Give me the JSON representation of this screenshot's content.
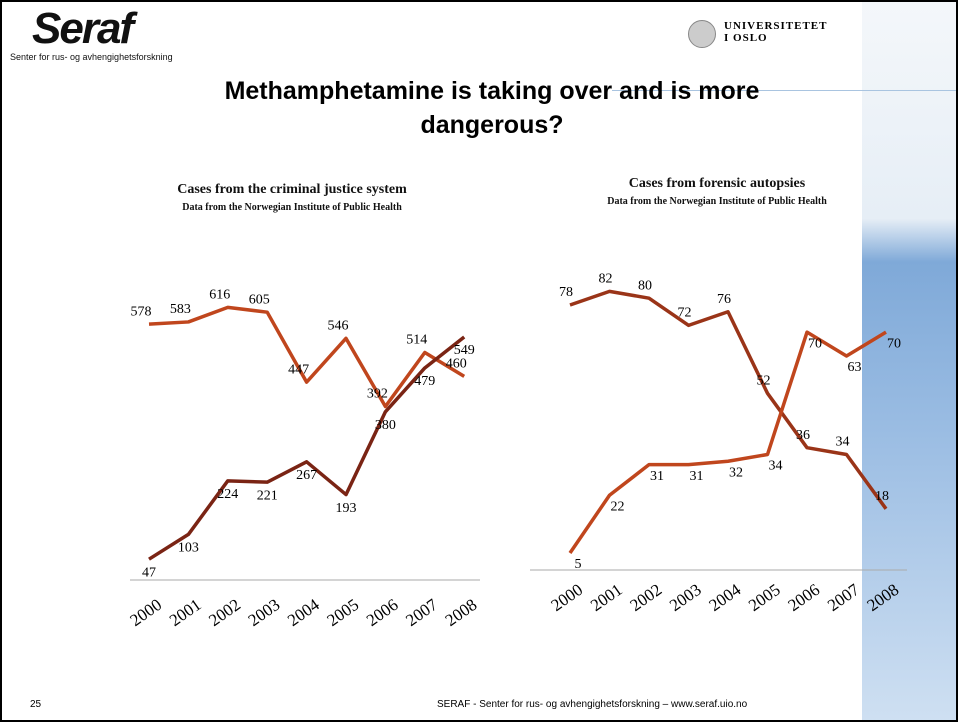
{
  "slide": {
    "logo": "Seraf",
    "logo_subtitle": "Senter for rus- og avhengighetsforskning",
    "university": "UNIVERSITETET I OSLO",
    "title": "Methamphetamine is taking over and is more dangerous?",
    "page_number": "25",
    "footer": "SERAF - Senter for rus- og avhengighetsforskning – www.seraf.uio.no"
  },
  "chart_data": [
    {
      "type": "line",
      "title": "Cases from the criminal justice system",
      "subtitle": "Data from the Norwegian Institute of Public Health",
      "categories": [
        "2000",
        "2001",
        "2002",
        "2003",
        "2004",
        "2005",
        "2006",
        "2007",
        "2008"
      ],
      "ylim": [
        0,
        680
      ],
      "series": [
        {
          "color": "#c0461d",
          "values": [
            578,
            583,
            616,
            605,
            447,
            546,
            392,
            514,
            460
          ]
        },
        {
          "color": "#7a2414",
          "values": [
            47,
            103,
            224,
            221,
            267,
            193,
            380,
            479,
            549
          ]
        }
      ]
    },
    {
      "type": "line",
      "title": "Cases from forensic autopsies",
      "subtitle": "Data from the Norwegian Institute of Public Health",
      "categories": [
        "2000",
        "2001",
        "2002",
        "2003",
        "2004",
        "2005",
        "2006",
        "2007",
        "2008"
      ],
      "ylim": [
        0,
        88
      ],
      "series": [
        {
          "color": "#9a3418",
          "values": [
            78,
            82,
            80,
            72,
            76,
            52,
            36,
            34,
            18
          ]
        },
        {
          "color": "#c0461d",
          "values": [
            5,
            22,
            31,
            31,
            32,
            34,
            70,
            63,
            70
          ]
        }
      ]
    }
  ]
}
